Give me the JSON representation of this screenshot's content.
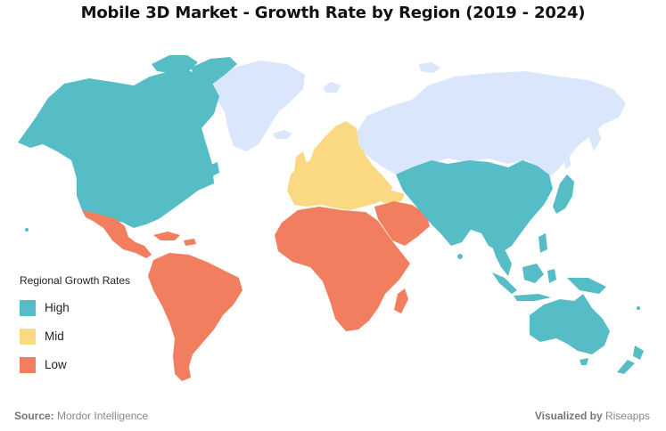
{
  "title": "Mobile 3D Market - Growth Rate by Region (2019 - 2024)",
  "legend": {
    "title": "Regional Growth Rates",
    "items": [
      {
        "label": "High",
        "color": "#56bcc6"
      },
      {
        "label": "Mid",
        "color": "#fbd882"
      },
      {
        "label": "Low",
        "color": "#f27e60"
      }
    ]
  },
  "colors": {
    "no_data": "#d9e6fb",
    "high": "#56bcc6",
    "mid": "#fbd882",
    "low": "#f27e60"
  },
  "regions": {
    "north_america": "High",
    "asia_pacific": "High",
    "europe": "Mid",
    "latin_america": "Low",
    "middle_east_africa": "Low",
    "russia_greenland": "No data"
  },
  "footer": {
    "source_label": "Source:",
    "source_value": "Mordor Intelligence",
    "visualized_label": "Visualized by",
    "visualized_value": "Riseapps"
  }
}
